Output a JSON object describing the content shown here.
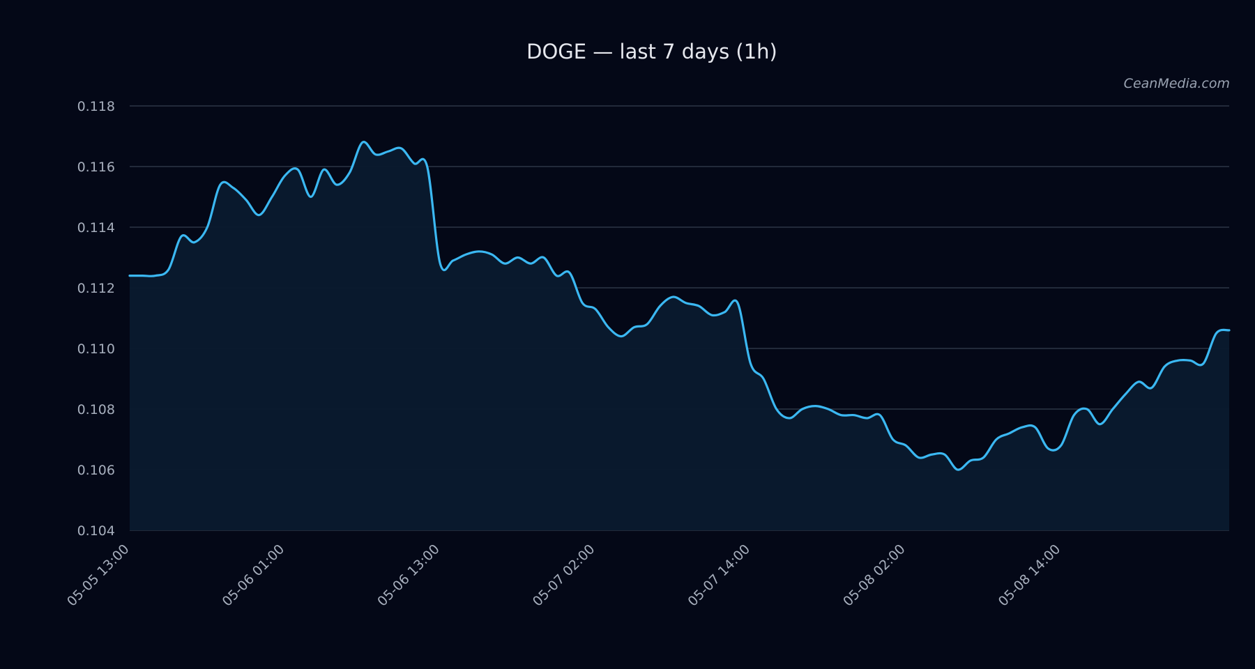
{
  "chart_data": {
    "type": "line",
    "title": "DOGE — last 7 days (1h)",
    "watermark": "CeanMedia.com",
    "xlabel": "",
    "ylabel": "",
    "x_tick_labels": [
      "05-05 13:00",
      "05-06 01:00",
      "05-06 13:00",
      "05-07 02:00",
      "05-07 14:00",
      "05-08 02:00",
      "05-08 14:00"
    ],
    "x_tick_index": [
      0,
      12,
      24,
      36,
      48,
      60,
      72
    ],
    "y_tick_labels": [
      "0.104",
      "0.106",
      "0.108",
      "0.110",
      "0.112",
      "0.114",
      "0.116",
      "0.118"
    ],
    "ylim": [
      0.104,
      0.118
    ],
    "grid": true,
    "line_color": "#3bb8f2",
    "fill_color": "#0a1a2e",
    "series": [
      {
        "values": [
          0.1124,
          0.1124,
          0.1124,
          0.1126,
          0.1137,
          0.1135,
          0.114,
          0.1154,
          0.1153,
          0.1149,
          0.1144,
          0.115,
          0.1157,
          0.1159,
          0.115,
          0.1159,
          0.1154,
          0.1158,
          0.1168,
          0.1164,
          0.1165,
          0.1166,
          0.1161,
          0.116,
          0.1128,
          0.1129,
          0.1131,
          0.1132,
          0.1131,
          0.1128,
          0.113,
          0.1128,
          0.113,
          0.1124,
          0.1125,
          0.1115,
          0.1113,
          0.1107,
          0.1104,
          0.1107,
          0.1108,
          0.1114,
          0.1117,
          0.1115,
          0.1114,
          0.1111,
          0.1112,
          0.1115,
          0.1095,
          0.109,
          0.108,
          0.1077,
          0.108,
          0.1081,
          0.108,
          0.1078,
          0.1078,
          0.1077,
          0.1078,
          0.107,
          0.1068,
          0.1064,
          0.1065,
          0.1065,
          0.106,
          0.1063,
          0.1064,
          0.107,
          0.1072,
          0.1074,
          0.1074,
          0.1067,
          0.1068,
          0.1078,
          0.108,
          0.1075,
          0.108,
          0.1085,
          0.1089,
          0.1087,
          0.1094,
          0.1096,
          0.1096,
          0.1095,
          0.1105,
          0.1106
        ]
      }
    ]
  }
}
